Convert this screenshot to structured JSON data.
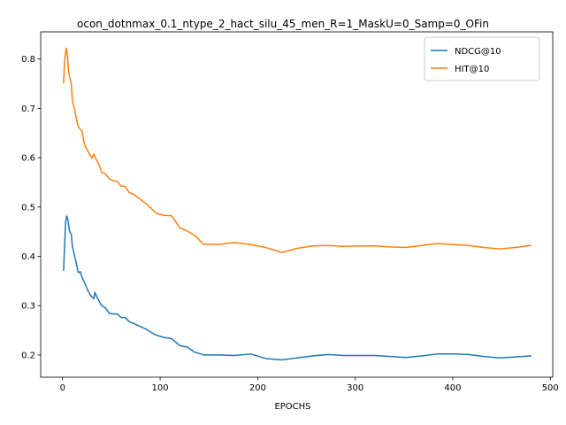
{
  "chart_data": {
    "type": "line",
    "title": "ocon_dotnmax_0.1_ntype_2_hact_silu_45_men_R=1_MaskU=0_Samp=0_OFin",
    "xlabel": "EPOCHS",
    "ylabel": "",
    "xlim": [
      -22.5,
      502.5
    ],
    "ylim": [
      0.155,
      0.855
    ],
    "xticks": [
      0,
      100,
      200,
      300,
      400,
      500
    ],
    "yticks": [
      0.2,
      0.3,
      0.4,
      0.5,
      0.6,
      0.7,
      0.8
    ],
    "xtick_labels": [
      "0",
      "100",
      "200",
      "300",
      "400",
      "500"
    ],
    "ytick_labels": [
      "0.2",
      "0.3",
      "0.4",
      "0.5",
      "0.6",
      "0.7",
      "0.8"
    ],
    "grid": false,
    "legend_position": "top-right",
    "series": [
      {
        "name": "NDCG@10",
        "color": "#1f77b4",
        "points": [
          [
            1,
            0.372
          ],
          [
            3,
            0.468
          ],
          [
            4,
            0.482
          ],
          [
            5,
            0.478
          ],
          [
            7,
            0.452
          ],
          [
            9,
            0.443
          ],
          [
            10,
            0.42
          ],
          [
            12,
            0.403
          ],
          [
            14,
            0.386
          ],
          [
            16,
            0.367
          ],
          [
            18,
            0.369
          ],
          [
            20,
            0.357
          ],
          [
            23,
            0.344
          ],
          [
            26,
            0.33
          ],
          [
            29,
            0.32
          ],
          [
            32,
            0.314
          ],
          [
            33,
            0.327
          ],
          [
            36,
            0.314
          ],
          [
            40,
            0.3
          ],
          [
            44,
            0.295
          ],
          [
            48,
            0.284
          ],
          [
            56,
            0.283
          ],
          [
            60,
            0.276
          ],
          [
            64,
            0.276
          ],
          [
            68,
            0.268
          ],
          [
            75,
            0.262
          ],
          [
            85,
            0.253
          ],
          [
            95,
            0.241
          ],
          [
            103,
            0.236
          ],
          [
            112,
            0.233
          ],
          [
            120,
            0.219
          ],
          [
            128,
            0.216
          ],
          [
            135,
            0.206
          ],
          [
            145,
            0.2
          ],
          [
            160,
            0.2
          ],
          [
            176,
            0.199
          ],
          [
            193,
            0.202
          ],
          [
            208,
            0.193
          ],
          [
            225,
            0.19
          ],
          [
            240,
            0.194
          ],
          [
            256,
            0.198
          ],
          [
            272,
            0.201
          ],
          [
            288,
            0.199
          ],
          [
            304,
            0.199
          ],
          [
            320,
            0.199
          ],
          [
            336,
            0.197
          ],
          [
            352,
            0.195
          ],
          [
            368,
            0.198
          ],
          [
            384,
            0.202
          ],
          [
            400,
            0.202
          ],
          [
            416,
            0.201
          ],
          [
            432,
            0.197
          ],
          [
            448,
            0.194
          ],
          [
            464,
            0.196
          ],
          [
            480,
            0.198
          ]
        ]
      },
      {
        "name": "HIT@10",
        "color": "#ff7f0e",
        "points": [
          [
            1,
            0.752
          ],
          [
            2,
            0.795
          ],
          [
            3,
            0.815
          ],
          [
            4,
            0.822
          ],
          [
            5,
            0.805
          ],
          [
            6,
            0.775
          ],
          [
            8,
            0.757
          ],
          [
            9,
            0.747
          ],
          [
            10,
            0.715
          ],
          [
            12,
            0.7
          ],
          [
            14,
            0.68
          ],
          [
            16,
            0.663
          ],
          [
            20,
            0.653
          ],
          [
            22,
            0.63
          ],
          [
            24,
            0.62
          ],
          [
            28,
            0.606
          ],
          [
            30,
            0.599
          ],
          [
            32,
            0.607
          ],
          [
            34,
            0.598
          ],
          [
            38,
            0.583
          ],
          [
            40,
            0.57
          ],
          [
            44,
            0.567
          ],
          [
            48,
            0.557
          ],
          [
            52,
            0.553
          ],
          [
            56,
            0.552
          ],
          [
            60,
            0.542
          ],
          [
            64,
            0.542
          ],
          [
            68,
            0.53
          ],
          [
            74,
            0.524
          ],
          [
            80,
            0.515
          ],
          [
            88,
            0.503
          ],
          [
            96,
            0.487
          ],
          [
            104,
            0.483
          ],
          [
            112,
            0.482
          ],
          [
            120,
            0.458
          ],
          [
            128,
            0.451
          ],
          [
            136,
            0.442
          ],
          [
            144,
            0.425
          ],
          [
            160,
            0.424
          ],
          [
            176,
            0.428
          ],
          [
            193,
            0.424
          ],
          [
            208,
            0.418
          ],
          [
            225,
            0.408
          ],
          [
            240,
            0.416
          ],
          [
            256,
            0.421
          ],
          [
            272,
            0.422
          ],
          [
            288,
            0.42
          ],
          [
            304,
            0.421
          ],
          [
            320,
            0.421
          ],
          [
            336,
            0.419
          ],
          [
            352,
            0.418
          ],
          [
            368,
            0.422
          ],
          [
            384,
            0.426
          ],
          [
            400,
            0.424
          ],
          [
            416,
            0.422
          ],
          [
            432,
            0.418
          ],
          [
            448,
            0.415
          ],
          [
            464,
            0.418
          ],
          [
            480,
            0.422
          ]
        ]
      }
    ]
  }
}
